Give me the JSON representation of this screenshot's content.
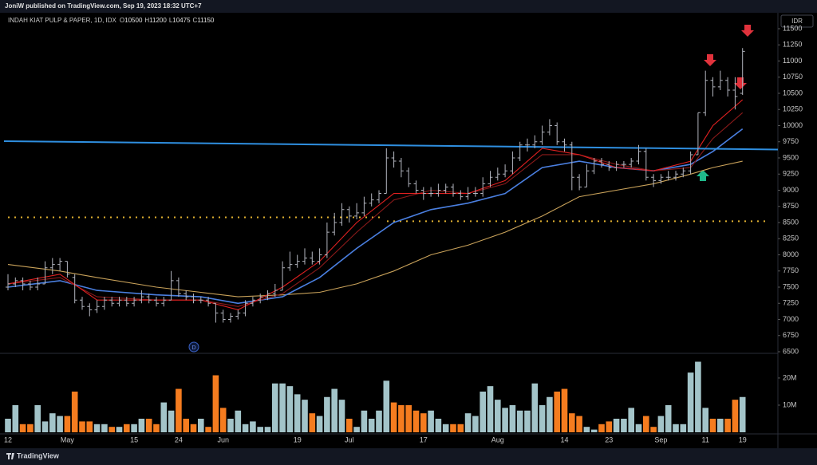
{
  "header": {
    "publisher": "JoniW published on TradingView.com, Sep 19, 2023 18:32 UTC+7",
    "currency": "IDR",
    "brand": "TradingView"
  },
  "chart_data": {
    "type": "ohlc",
    "symbol": "INDAH KIAT PULP & PAPER, 1D, IDX",
    "legend_labels": [
      "O",
      "H",
      "L",
      "C"
    ],
    "legend_values": [
      10500,
      11200,
      10475,
      11150
    ],
    "dividend_marker": "D",
    "categories": [
      "12",
      null,
      null,
      null,
      null,
      null,
      null,
      null,
      "May",
      null,
      null,
      null,
      null,
      null,
      null,
      null,
      null,
      "15",
      null,
      null,
      null,
      null,
      null,
      "24",
      null,
      null,
      null,
      null,
      null,
      "Jun",
      null,
      null,
      null,
      null,
      null,
      null,
      null,
      null,
      null,
      "19",
      null,
      null,
      null,
      null,
      null,
      null,
      "Jul",
      null,
      null,
      null,
      null,
      null,
      null,
      null,
      null,
      null,
      "17",
      null,
      null,
      null,
      null,
      null,
      null,
      null,
      null,
      null,
      "Aug",
      null,
      null,
      null,
      null,
      null,
      null,
      null,
      null,
      "14",
      null,
      null,
      null,
      null,
      null,
      "23",
      null,
      null,
      null,
      null,
      null,
      null,
      "Sep",
      null,
      null,
      null,
      null,
      null,
      "11",
      null,
      null,
      null,
      null,
      "19"
    ],
    "ohlc": [
      [
        7500,
        7700,
        7450,
        7550
      ],
      [
        7550,
        7650,
        7500,
        7600
      ],
      [
        7600,
        7650,
        7450,
        7550
      ],
      [
        7550,
        7600,
        7450,
        7500
      ],
      [
        7500,
        7650,
        7450,
        7550
      ],
      [
        7550,
        7900,
        7550,
        7800
      ],
      [
        7800,
        7950,
        7700,
        7850
      ],
      [
        7850,
        7950,
        7750,
        7900
      ],
      [
        7900,
        7900,
        7650,
        7700
      ],
      [
        7650,
        7700,
        7250,
        7300
      ],
      [
        7300,
        7350,
        7150,
        7200
      ],
      [
        7200,
        7250,
        7050,
        7150
      ],
      [
        7150,
        7300,
        7100,
        7200
      ],
      [
        7200,
        7350,
        7150,
        7300
      ],
      [
        7300,
        7350,
        7200,
        7250
      ],
      [
        7250,
        7350,
        7200,
        7300
      ],
      [
        7300,
        7350,
        7200,
        7250
      ],
      [
        7250,
        7350,
        7200,
        7300
      ],
      [
        7300,
        7450,
        7250,
        7350
      ],
      [
        7350,
        7400,
        7250,
        7300
      ],
      [
        7300,
        7350,
        7200,
        7250
      ],
      [
        7250,
        7350,
        7200,
        7300
      ],
      [
        7300,
        7750,
        7300,
        7600
      ],
      [
        7600,
        7650,
        7350,
        7400
      ],
      [
        7400,
        7450,
        7300,
        7350
      ],
      [
        7350,
        7400,
        7250,
        7300
      ],
      [
        7300,
        7350,
        7250,
        7300
      ],
      [
        7300,
        7350,
        7200,
        7250
      ],
      [
        7250,
        7250,
        6950,
        7100
      ],
      [
        7100,
        7150,
        6950,
        7000
      ],
      [
        7000,
        7100,
        6950,
        7050
      ],
      [
        7050,
        7150,
        7000,
        7100
      ],
      [
        7100,
        7300,
        7050,
        7250
      ],
      [
        7250,
        7350,
        7200,
        7300
      ],
      [
        7300,
        7400,
        7250,
        7350
      ],
      [
        7350,
        7450,
        7300,
        7400
      ],
      [
        7400,
        7550,
        7350,
        7450
      ],
      [
        7450,
        7900,
        7450,
        7800
      ],
      [
        7800,
        8050,
        7750,
        7850
      ],
      [
        7850,
        8000,
        7800,
        7900
      ],
      [
        7900,
        8100,
        7850,
        7950
      ],
      [
        7950,
        8050,
        7850,
        7900
      ],
      [
        7900,
        8100,
        7850,
        8000
      ],
      [
        8000,
        8500,
        7950,
        8350
      ],
      [
        8350,
        8650,
        8300,
        8500
      ],
      [
        8500,
        8800,
        8450,
        8700
      ],
      [
        8700,
        8750,
        8500,
        8600
      ],
      [
        8600,
        8800,
        8550,
        8650
      ],
      [
        8650,
        8900,
        8600,
        8800
      ],
      [
        8800,
        8950,
        8750,
        8850
      ],
      [
        8850,
        9000,
        8800,
        8950
      ],
      [
        8950,
        9650,
        8950,
        9500
      ],
      [
        9500,
        9600,
        9350,
        9450
      ],
      [
        9450,
        9500,
        9200,
        9300
      ],
      [
        9300,
        9350,
        9050,
        9100
      ],
      [
        9100,
        9150,
        8950,
        9000
      ],
      [
        9000,
        9050,
        8850,
        8950
      ],
      [
        8950,
        9050,
        8900,
        8950
      ],
      [
        8950,
        9100,
        8900,
        9000
      ],
      [
        9000,
        9100,
        8950,
        9050
      ],
      [
        9050,
        9100,
        8900,
        8950
      ],
      [
        8950,
        9000,
        8850,
        8900
      ],
      [
        8900,
        9050,
        8850,
        8950
      ],
      [
        8950,
        9050,
        8900,
        8950
      ],
      [
        8950,
        9200,
        8900,
        9100
      ],
      [
        9100,
        9300,
        9050,
        9200
      ],
      [
        9200,
        9350,
        9150,
        9250
      ],
      [
        9250,
        9400,
        9200,
        9300
      ],
      [
        9300,
        9600,
        9250,
        9500
      ],
      [
        9500,
        9750,
        9450,
        9700
      ],
      [
        9700,
        9800,
        9600,
        9700
      ],
      [
        9700,
        9850,
        9650,
        9750
      ],
      [
        9750,
        10000,
        9700,
        9900
      ],
      [
        9900,
        10100,
        9850,
        10000
      ],
      [
        10000,
        10050,
        9700,
        9750
      ],
      [
        9750,
        9800,
        9600,
        9700
      ],
      [
        9700,
        9750,
        9000,
        9200
      ],
      [
        9200,
        9250,
        9000,
        9050
      ],
      [
        9050,
        9400,
        9050,
        9300
      ],
      [
        9300,
        9500,
        9250,
        9450
      ],
      [
        9450,
        9500,
        9350,
        9400
      ],
      [
        9400,
        9450,
        9300,
        9350
      ],
      [
        9350,
        9450,
        9300,
        9400
      ],
      [
        9400,
        9450,
        9350,
        9400
      ],
      [
        9400,
        9500,
        9350,
        9450
      ],
      [
        9450,
        9700,
        9400,
        9600
      ],
      [
        9600,
        9650,
        9150,
        9200
      ],
      [
        9200,
        9250,
        9050,
        9150
      ],
      [
        9150,
        9250,
        9100,
        9200
      ],
      [
        9200,
        9300,
        9150,
        9200
      ],
      [
        9200,
        9300,
        9150,
        9250
      ],
      [
        9250,
        9350,
        9200,
        9300
      ],
      [
        9300,
        9600,
        9250,
        9550
      ],
      [
        9550,
        10200,
        9550,
        10200
      ],
      [
        10200,
        10850,
        10150,
        10700
      ],
      [
        10700,
        10750,
        10450,
        10600
      ],
      [
        10600,
        10850,
        10550,
        10700
      ],
      [
        10700,
        10750,
        10450,
        10550
      ],
      [
        10550,
        10750,
        10250,
        10450
      ],
      [
        10500,
        11200,
        10475,
        11150
      ]
    ],
    "bar_color": "#b2b5be",
    "moving_averages": {
      "x": [
        0,
        7,
        12,
        20,
        26,
        31,
        37,
        42,
        47,
        52,
        57,
        62,
        67,
        72,
        77,
        82,
        87,
        92,
        95,
        99
      ],
      "series": [
        {
          "color": "#c9a25a",
          "values": [
            7850,
            7750,
            7650,
            7500,
            7420,
            7350,
            7380,
            7420,
            7550,
            7750,
            8000,
            8150,
            8350,
            8600,
            8900,
            9000,
            9100,
            9250,
            9350,
            9450
          ]
        },
        {
          "color": "#4a7fe0",
          "values": [
            7500,
            7600,
            7450,
            7380,
            7350,
            7250,
            7350,
            7650,
            8100,
            8500,
            8700,
            8800,
            8950,
            9350,
            9450,
            9350,
            9300,
            9400,
            9600,
            9950
          ]
        },
        {
          "color": "#8b1a1a",
          "values": [
            7550,
            7650,
            7350,
            7300,
            7300,
            7200,
            7400,
            7800,
            8350,
            8850,
            9000,
            8950,
            9100,
            9550,
            9550,
            9400,
            9300,
            9350,
            9800,
            10200
          ]
        },
        {
          "color": "#e02020",
          "values": [
            7550,
            7700,
            7300,
            7300,
            7300,
            7150,
            7500,
            7900,
            8500,
            8950,
            8950,
            8950,
            9150,
            9650,
            9550,
            9350,
            9300,
            9450,
            10000,
            10400
          ]
        }
      ]
    },
    "trendline": {
      "color": "#2f8fe0",
      "values": [
        9760,
        9630
      ]
    },
    "levels": {
      "color": "#e0b030",
      "values": [
        8580,
        8520
      ]
    },
    "ylim": [
      6500,
      11700
    ],
    "yticks": [
      6500,
      6750,
      7000,
      7250,
      7500,
      7750,
      8000,
      8250,
      8500,
      8750,
      9000,
      9250,
      9500,
      9750,
      10000,
      10250,
      10500,
      10750,
      11000,
      11250,
      11500
    ],
    "volume": {
      "values": [
        5,
        10,
        3,
        3,
        10,
        4,
        7,
        6,
        6,
        15,
        4,
        4,
        3,
        3,
        2,
        2,
        3,
        3,
        5,
        5,
        3,
        11,
        8,
        16,
        5,
        3,
        5,
        2,
        21,
        9,
        5,
        8,
        3,
        4,
        2,
        2,
        18,
        18,
        17,
        14,
        12,
        7,
        6,
        13,
        16,
        12,
        5,
        2,
        8,
        5,
        8,
        19,
        11,
        10,
        10,
        8,
        7,
        8,
        5,
        3,
        3,
        3,
        7,
        6,
        15,
        17,
        12,
        9,
        10,
        8,
        8,
        18,
        10,
        13,
        15,
        16,
        7,
        6,
        2,
        1,
        3,
        4,
        5,
        5,
        9,
        3,
        6,
        2,
        6,
        10,
        3,
        3,
        22,
        26,
        9,
        5,
        5,
        5,
        12,
        13
      ],
      "up_color": "#a3c4c9",
      "down_color": "#f57c1f",
      "ylim": [
        0,
        28.5
      ],
      "yticks": [
        {
          "value": 10,
          "label": "10M"
        },
        {
          "value": 20,
          "label": "20M"
        }
      ]
    }
  }
}
